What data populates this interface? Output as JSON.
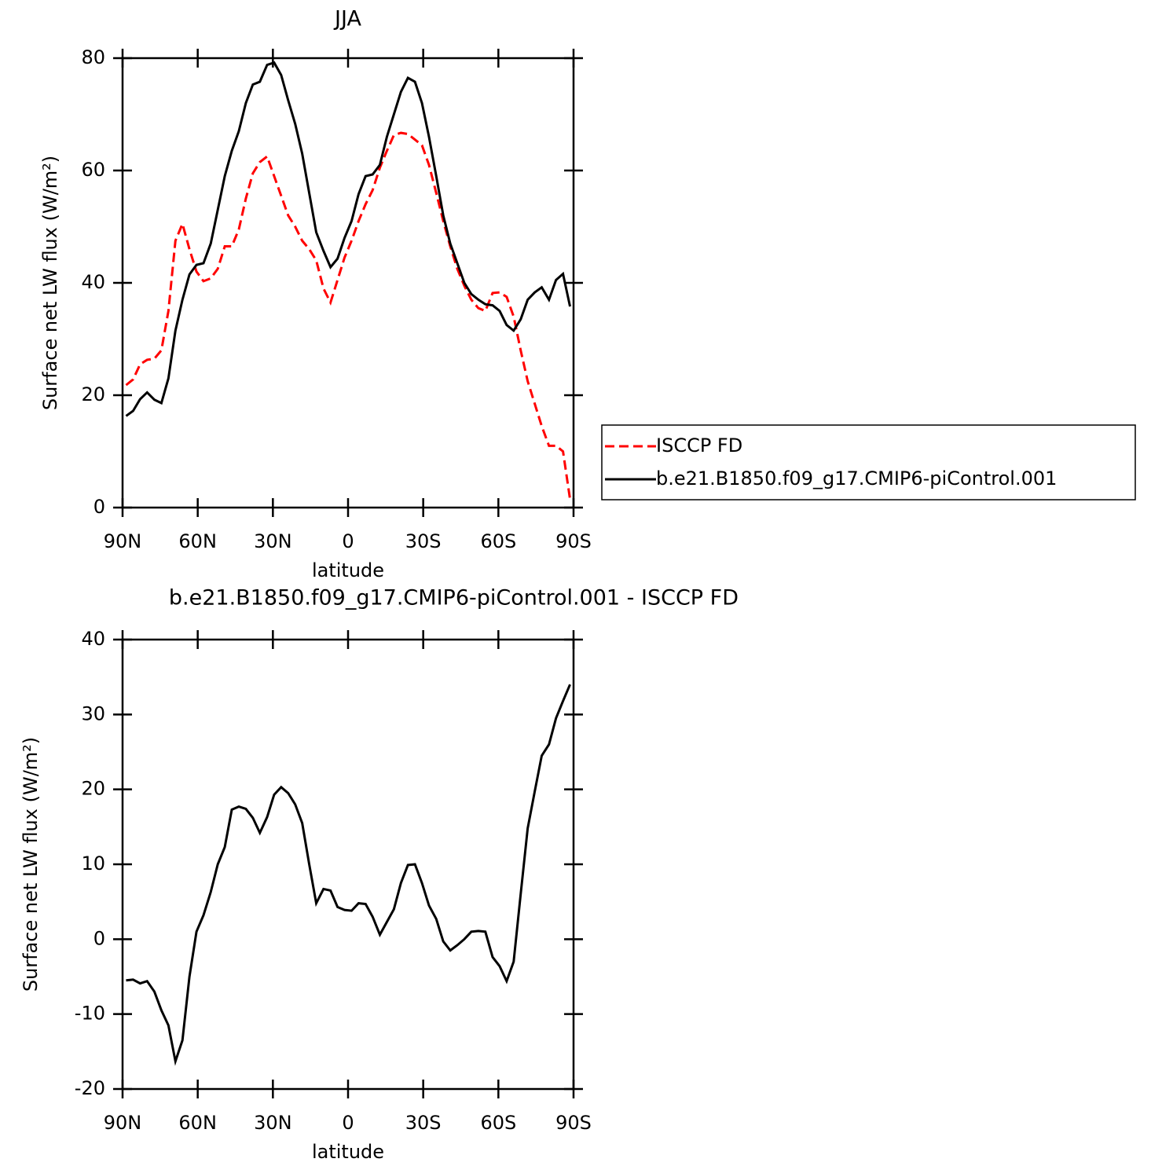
{
  "chart_data": [
    {
      "type": "line",
      "title": "JJA",
      "xlabel": "latitude",
      "ylabel": "Surface net LW flux (W/m²)",
      "x": [
        88.6,
        85.8,
        83.0,
        80.2,
        77.3,
        74.5,
        71.7,
        68.9,
        66.1,
        63.3,
        60.5,
        57.7,
        54.8,
        52.0,
        49.2,
        46.4,
        43.6,
        40.8,
        38.0,
        35.2,
        32.3,
        29.5,
        26.7,
        23.9,
        21.1,
        18.3,
        15.5,
        12.7,
        9.8,
        7.0,
        4.2,
        1.4,
        -1.4,
        -4.2,
        -7.0,
        -9.8,
        -12.7,
        -15.5,
        -18.3,
        -21.1,
        -23.9,
        -26.7,
        -29.5,
        -32.3,
        -35.2,
        -38.0,
        -40.8,
        -43.6,
        -46.4,
        -49.2,
        -52.0,
        -54.8,
        -57.7,
        -60.5,
        -63.3,
        -66.1,
        -68.9,
        -71.7,
        -74.5,
        -77.3,
        -80.2,
        -83.0,
        -85.8,
        -88.6
      ],
      "series": [
        {
          "name": "ISCCP FD",
          "color": "#ff0000",
          "dashed": true,
          "values": [
            21.8,
            22.8,
            25.5,
            26.3,
            26.5,
            28,
            35,
            47.5,
            50.5,
            46,
            42,
            40.3,
            40.8,
            42.5,
            46.5,
            46.5,
            49.5,
            55,
            59.5,
            61.5,
            62.5,
            59,
            55.5,
            52,
            50,
            47.5,
            46,
            44,
            39,
            36.5,
            40.5,
            44.5,
            47.5,
            51,
            54,
            56.5,
            60.5,
            63.5,
            66.3,
            66.7,
            66.5,
            65.5,
            64.5,
            61,
            56,
            51,
            46.5,
            42.5,
            39.5,
            37,
            35.5,
            35,
            38.2,
            38.3,
            37.5,
            34,
            28,
            22.5,
            18.5,
            14.5,
            11,
            11,
            10,
            1.5
          ]
        },
        {
          "name": "b.e21.B1850.f09_g17.CMIP6-piControl.001",
          "color": "#000000",
          "dashed": false,
          "values": [
            16.3,
            17.2,
            19.3,
            20.5,
            19.2,
            18.6,
            23,
            31.5,
            37,
            41.5,
            43.2,
            43.5,
            47,
            53,
            59,
            63.5,
            67,
            72,
            75.3,
            75.8,
            78.8,
            79.2,
            77,
            72.5,
            68.3,
            63,
            56,
            49,
            45.7,
            42.8,
            44.3,
            48,
            51,
            55.8,
            59,
            59.3,
            61,
            66,
            70,
            74,
            76.5,
            75.8,
            72,
            66,
            59,
            52,
            47,
            43.5,
            40,
            38,
            37,
            36.2,
            36,
            35,
            32.5,
            31.5,
            33.5,
            37,
            38.3,
            39.2,
            37,
            40.5,
            41.6,
            35.8
          ]
        }
      ],
      "xlim": [
        90,
        -90
      ],
      "xticks": [
        {
          "value": 90,
          "label": "90N"
        },
        {
          "value": 60,
          "label": "60N"
        },
        {
          "value": 30,
          "label": "30N"
        },
        0,
        {
          "value": -30,
          "label": "30S"
        },
        {
          "value": -60,
          "label": "60S"
        },
        {
          "value": -90,
          "label": "90S"
        }
      ],
      "ylim": [
        0,
        80
      ],
      "yticks": [
        0,
        20,
        40,
        60,
        80
      ],
      "legend": "right"
    },
    {
      "type": "line",
      "title": "b.e21.B1850.f09_g17.CMIP6-piControl.001 - ISCCP FD",
      "xlabel": "latitude",
      "ylabel": "Surface net LW flux (W/m²)",
      "x": [
        88.6,
        85.8,
        83.0,
        80.2,
        77.3,
        74.5,
        71.7,
        68.9,
        66.1,
        63.3,
        60.5,
        57.7,
        54.8,
        52.0,
        49.2,
        46.4,
        43.6,
        40.8,
        38.0,
        35.2,
        32.3,
        29.5,
        26.7,
        23.9,
        21.1,
        18.3,
        15.5,
        12.7,
        9.8,
        7.0,
        4.2,
        1.4,
        -1.4,
        -4.2,
        -7.0,
        -9.8,
        -12.7,
        -15.5,
        -18.3,
        -21.1,
        -23.9,
        -26.7,
        -29.5,
        -32.3,
        -35.2,
        -38.0,
        -40.8,
        -43.6,
        -46.4,
        -49.2,
        -52.0,
        -54.8,
        -57.7,
        -60.5,
        -63.3,
        -66.1,
        -68.9,
        -71.7,
        -74.5,
        -77.3,
        -80.2,
        -83.0,
        -85.8,
        -88.6
      ],
      "series": [
        {
          "color": "#000000",
          "dashed": false,
          "values": [
            -5.5,
            -5.4,
            -5.9,
            -5.6,
            -7,
            -9.5,
            -11.5,
            -16.3,
            -13.5,
            -5,
            1,
            3.2,
            6.3,
            10,
            12.3,
            17.3,
            17.7,
            17.4,
            16.2,
            14.2,
            16.3,
            19.3,
            20.3,
            19.5,
            18,
            15.5,
            10,
            4.8,
            6.7,
            6.5,
            4.3,
            3.9,
            3.8,
            4.8,
            4.7,
            3,
            0.6,
            2.3,
            4,
            7.5,
            9.9,
            10,
            7.5,
            4.5,
            2.7,
            -0.3,
            -1.5,
            -0.8,
            0,
            1,
            1.1,
            1,
            -2.4,
            -3.6,
            -5.6,
            -3,
            6,
            14.8,
            19.7,
            24.5,
            26,
            29.5,
            31.8,
            34
          ]
        }
      ],
      "xlim": [
        90,
        -90
      ],
      "xticks": [
        {
          "value": 90,
          "label": "90N"
        },
        {
          "value": 60,
          "label": "60N"
        },
        {
          "value": 30,
          "label": "30N"
        },
        0,
        {
          "value": -30,
          "label": "30S"
        },
        {
          "value": -60,
          "label": "60S"
        },
        {
          "value": -90,
          "label": "90S"
        }
      ],
      "ylim": [
        -20,
        40
      ],
      "yticks": [
        -20,
        -10,
        0,
        10,
        20,
        30,
        40
      ]
    }
  ]
}
